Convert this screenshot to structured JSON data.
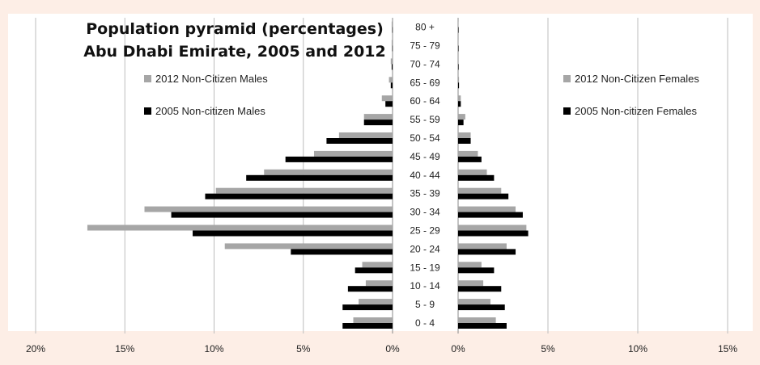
{
  "chart_data": {
    "type": "bar",
    "orientation": "horizontal",
    "title": "Population pyramid (percentages)",
    "subtitle": "Abu Dhabi Emirate, 2005 and 2012",
    "categories": [
      "0 - 4",
      "5 - 9",
      "10 - 14",
      "15 - 19",
      "20 - 24",
      "25 - 29",
      "30 - 34",
      "35 - 39",
      "40 - 44",
      "45 - 49",
      "50 - 54",
      "55 - 59",
      "60 - 64",
      "65 - 69",
      "70 - 74",
      "75 - 79",
      "80 +"
    ],
    "left_axis": {
      "ticks": [
        "20%",
        "15%",
        "10%",
        "5%",
        "0%"
      ],
      "range": [
        0,
        20
      ]
    },
    "right_axis": {
      "ticks": [
        "0%",
        "5%",
        "10%",
        "15%"
      ],
      "range": [
        0,
        15
      ]
    },
    "grid": true,
    "series": [
      {
        "name": "2012 Non-Citizen Males",
        "side": "left",
        "color": "#a6a6a6",
        "values": [
          2.2,
          1.9,
          1.5,
          1.7,
          9.4,
          17.1,
          13.9,
          9.9,
          7.2,
          4.4,
          3.0,
          1.6,
          0.6,
          0.2,
          0.1,
          0.05,
          0.05
        ]
      },
      {
        "name": "2005 Non-citizen Males",
        "side": "left",
        "color": "#000000",
        "values": [
          2.8,
          2.8,
          2.5,
          2.1,
          5.7,
          11.2,
          12.4,
          10.5,
          8.2,
          6.0,
          3.7,
          1.6,
          0.4,
          0.1,
          0.05,
          0.02,
          0.02
        ]
      },
      {
        "name": "2012 Non-Citizen Females",
        "side": "right",
        "color": "#a6a6a6",
        "values": [
          2.1,
          1.8,
          1.4,
          1.3,
          2.7,
          3.8,
          3.2,
          2.4,
          1.6,
          1.1,
          0.7,
          0.4,
          0.15,
          0.05,
          0.03,
          0.02,
          0.02
        ]
      },
      {
        "name": "2005 Non-citizen Females",
        "side": "right",
        "color": "#000000",
        "values": [
          2.7,
          2.6,
          2.4,
          2.0,
          3.2,
          3.9,
          3.6,
          2.8,
          2.0,
          1.3,
          0.7,
          0.3,
          0.15,
          0.05,
          0.03,
          0.02,
          0.02
        ]
      }
    ]
  }
}
